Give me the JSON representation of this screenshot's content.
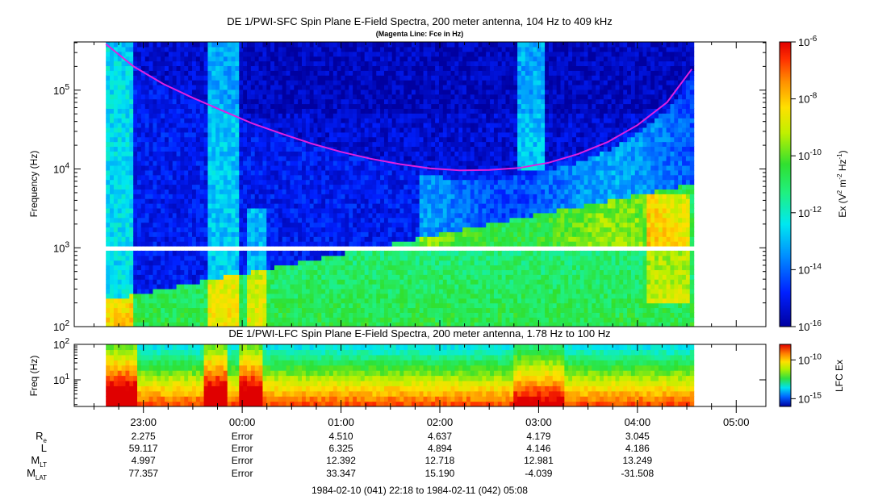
{
  "chart_data": [
    {
      "type": "heatmap",
      "title": "DE 1/PWI-SFC  Spin Plane E-Field Spectra, 200 meter antenna, 104 Hz to 409 kHz",
      "subtitle": "(Magenta Line: Fce in Hz)",
      "ylabel": "Frequency (Hz)",
      "yscale": "log",
      "ylim": [
        100,
        409000
      ],
      "y_ticks": [
        {
          "value": 100,
          "base": "10",
          "exp": "2"
        },
        {
          "value": 1000,
          "base": "10",
          "exp": "3"
        },
        {
          "value": 10000,
          "base": "10",
          "exp": "4"
        },
        {
          "value": 100000,
          "base": "10",
          "exp": "5"
        }
      ],
      "colorbar": {
        "label_prefix": "Ex (V",
        "label_sup1": "2",
        "label_mid": " m",
        "label_sup2": "-2",
        "label_mid2": " Hz",
        "label_sup3": "-1",
        "label_suffix": ")",
        "scale": "log",
        "range": [
          1e-16,
          1e-06
        ],
        "ticks": [
          {
            "value": 1e-06,
            "base": "10",
            "exp": "-6"
          },
          {
            "value": 1e-08,
            "base": "10",
            "exp": "-8"
          },
          {
            "value": 1e-10,
            "base": "10",
            "exp": "-10"
          },
          {
            "value": 1e-12,
            "base": "10",
            "exp": "-12"
          },
          {
            "value": 1e-14,
            "base": "10",
            "exp": "-14"
          },
          {
            "value": 1e-16,
            "base": "10",
            "exp": "-16"
          }
        ]
      },
      "fce_line": {
        "color": "#e020e0",
        "time_hours": [
          22.62,
          22.9,
          23.2,
          23.5,
          23.8,
          24.1,
          24.4,
          24.7,
          25.0,
          25.3,
          25.6,
          25.9,
          26.2,
          26.5,
          26.8,
          27.1,
          27.4,
          27.7,
          28.0,
          28.3,
          28.55
        ],
        "freq_hz": [
          385000,
          200000,
          120000,
          80000,
          55000,
          38000,
          28000,
          21000,
          16500,
          13500,
          11500,
          10200,
          9600,
          9700,
          10300,
          12000,
          15500,
          22000,
          36000,
          70000,
          185000
        ]
      },
      "data_gap_hz": [
        880,
        1050
      ]
    },
    {
      "type": "heatmap",
      "title": "DE 1/PWI-LFC  Spin Plane E-Field Spectra, 200 meter antenna, 1.78 Hz to 100 Hz",
      "ylabel": "Freq (Hz)",
      "yscale": "log",
      "ylim": [
        1.78,
        100
      ],
      "y_ticks": [
        {
          "value": 10,
          "base": "10",
          "exp": "1"
        },
        {
          "value": 100,
          "base": "10",
          "exp": "2"
        }
      ],
      "colorbar": {
        "label": "LFC Ex",
        "scale": "log",
        "range": [
          1e-16,
          1e-08
        ],
        "ticks": [
          {
            "value": 1e-10,
            "base": "10",
            "exp": "-10"
          },
          {
            "value": 1e-15,
            "base": "10",
            "exp": "-15"
          }
        ]
      }
    }
  ],
  "time_axis": {
    "start_hours": 22.3,
    "end_hours": 29.3,
    "data_start_hours": 22.62,
    "data_end_hours": 28.57,
    "labels": [
      "23:00",
      "00:00",
      "01:00",
      "02:00",
      "03:00",
      "04:00",
      "05:00"
    ],
    "label_hours": [
      23,
      24,
      25,
      26,
      27,
      28,
      29
    ]
  },
  "ephemeris": {
    "rows": [
      {
        "label": "R",
        "sub": "e",
        "values": [
          "2.275",
          "Error",
          "4.510",
          "4.637",
          "4.179",
          "3.045"
        ]
      },
      {
        "label": "L",
        "sub": "",
        "values": [
          "59.117",
          "Error",
          "6.325",
          "4.894",
          "4.146",
          "4.186"
        ]
      },
      {
        "label": "M",
        "sub": "LT",
        "values": [
          "4.997",
          "Error",
          "12.392",
          "12.718",
          "12.981",
          "13.249"
        ]
      },
      {
        "label": "M",
        "sub": "LAT",
        "values": [
          "77.357",
          "Error",
          "33.347",
          "15.190",
          "-4.039",
          "-31.508"
        ]
      }
    ]
  },
  "time_range_label": "1984-02-10 (041) 22:18 to 1984-02-11 (042) 05:08"
}
